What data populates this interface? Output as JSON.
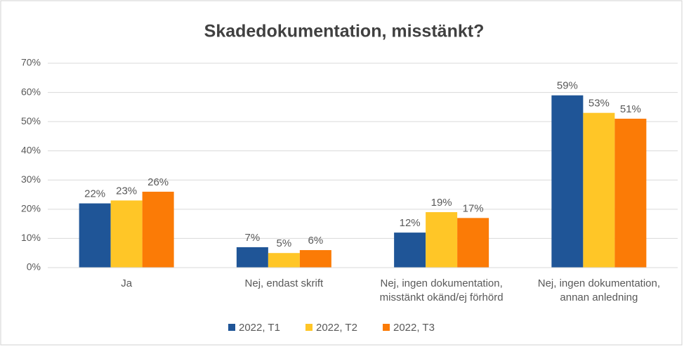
{
  "chart_data": {
    "type": "bar",
    "title": "Skadedokumentation, misstänkt?",
    "categories": [
      "Ja",
      "Nej, endast skrift",
      "Nej, ingen dokumentation,\nmisstänkt okänd/ej förhörd",
      "Nej, ingen dokumentation,\nannan anledning"
    ],
    "series": [
      {
        "name": "2022, T1",
        "color": "#1f5597",
        "values": [
          22,
          7,
          12,
          59
        ],
        "value_labels": [
          "22%",
          "7%",
          "12%",
          "59%"
        ]
      },
      {
        "name": "2022, T2",
        "color": "#ffc627",
        "values": [
          23,
          5,
          19,
          53
        ],
        "value_labels": [
          "23%",
          "5%",
          "19%",
          "53%"
        ]
      },
      {
        "name": "2022, T3",
        "color": "#fb7b06",
        "values": [
          26,
          6,
          17,
          51
        ],
        "value_labels": [
          "26%",
          "6%",
          "17%",
          "51%"
        ]
      }
    ],
    "ylim": [
      0,
      70
    ],
    "yticks": [
      {
        "value": 0,
        "label": "0%"
      },
      {
        "value": 10,
        "label": "10%"
      },
      {
        "value": 20,
        "label": "20%"
      },
      {
        "value": 30,
        "label": "30%"
      },
      {
        "value": 40,
        "label": "40%"
      },
      {
        "value": 50,
        "label": "50%"
      },
      {
        "value": 60,
        "label": "60%"
      },
      {
        "value": 70,
        "label": "70%"
      }
    ],
    "grid": true,
    "legend": "bottom"
  }
}
